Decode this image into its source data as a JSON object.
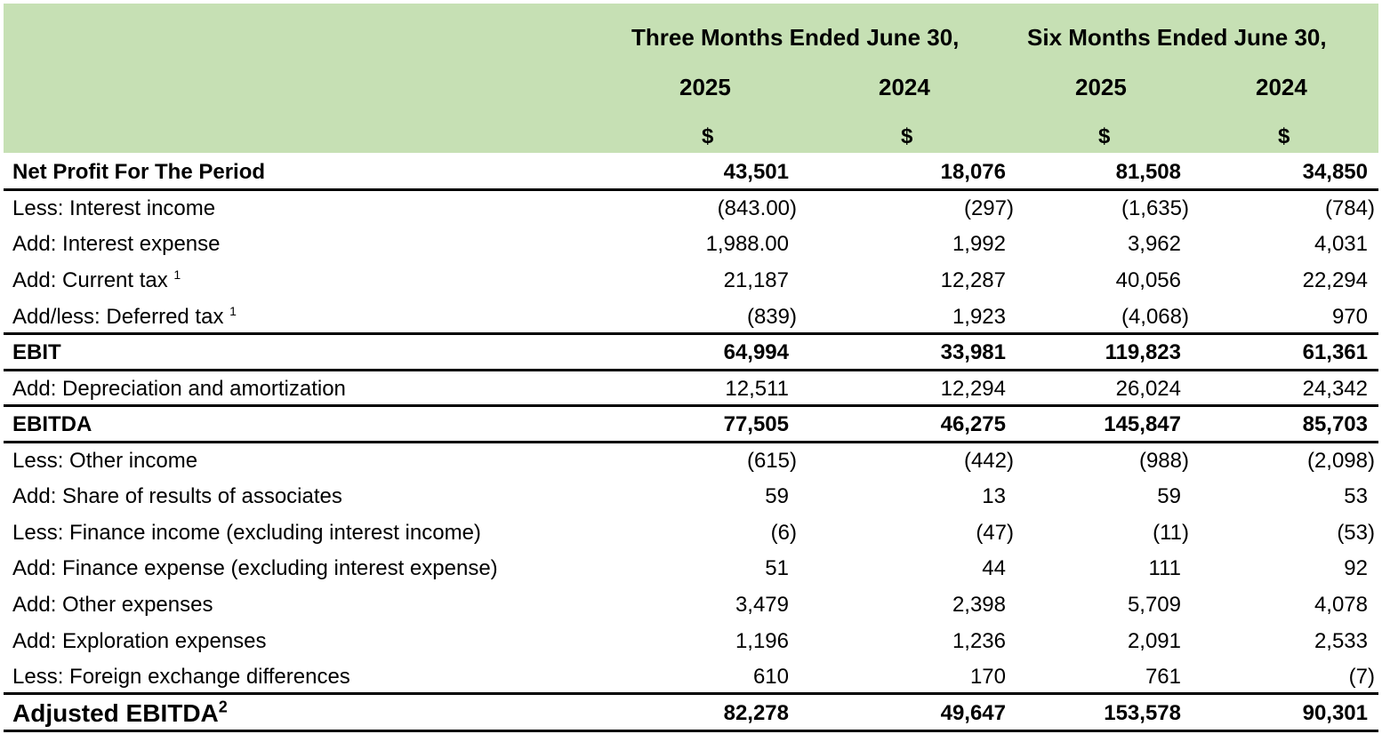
{
  "header": {
    "group_three_months": "Three Months Ended June 30,",
    "group_six_months": "Six Months Ended June 30,",
    "years": [
      "2025",
      "2024",
      "2025",
      "2024"
    ],
    "currency": [
      "$",
      "$",
      "$",
      "$"
    ]
  },
  "rows": [
    {
      "label": "Net Profit For The Period",
      "sup": "",
      "values": [
        "43,501",
        "18,076",
        "81,508",
        "34,850"
      ]
    },
    {
      "label": "Less: Interest income",
      "sup": "",
      "values": [
        "(843.00)",
        "(297)",
        "(1,635)",
        "(784)"
      ]
    },
    {
      "label": "Add: Interest expense",
      "sup": "",
      "values": [
        "1,988.00",
        "1,992",
        "3,962",
        "4,031"
      ]
    },
    {
      "label": "Add: Current tax",
      "sup": "1",
      "values": [
        "21,187",
        "12,287",
        "40,056",
        "22,294"
      ]
    },
    {
      "label": "Add/less: Deferred tax",
      "sup": "1",
      "values": [
        "(839)",
        "1,923",
        "(4,068)",
        "970"
      ]
    },
    {
      "label": "EBIT",
      "sup": "",
      "values": [
        "64,994",
        "33,981",
        "119,823",
        "61,361"
      ]
    },
    {
      "label": "Add: Depreciation and amortization",
      "sup": "",
      "values": [
        "12,511",
        "12,294",
        "26,024",
        "24,342"
      ]
    },
    {
      "label": "EBITDA",
      "sup": "",
      "values": [
        "77,505",
        "46,275",
        "145,847",
        "85,703"
      ]
    },
    {
      "label": "Less: Other income",
      "sup": "",
      "values": [
        "(615)",
        "(442)",
        "(988)",
        "(2,098)"
      ]
    },
    {
      "label": "Add: Share of results of associates",
      "sup": "",
      "values": [
        "59",
        "13",
        "59",
        "53"
      ]
    },
    {
      "label": "Less: Finance income (excluding interest income)",
      "sup": "",
      "values": [
        "(6)",
        "(47)",
        "(11)",
        "(53)"
      ]
    },
    {
      "label": "Add: Finance expense (excluding interest expense)",
      "sup": "",
      "values": [
        "51",
        "44",
        "111",
        "92"
      ]
    },
    {
      "label": "Add: Other expenses",
      "sup": "",
      "values": [
        "3,479",
        "2,398",
        "5,709",
        "4,078"
      ]
    },
    {
      "label": "Add: Exploration expenses",
      "sup": "",
      "values": [
        "1,196",
        "1,236",
        "2,091",
        "2,533"
      ]
    },
    {
      "label": "Less: Foreign exchange differences",
      "sup": "",
      "values": [
        "610",
        "170",
        "761",
        "(7)"
      ]
    },
    {
      "label": "Adjusted EBITDA",
      "sup": "2",
      "values": [
        "82,278",
        "49,647",
        "153,578",
        "90,301"
      ]
    }
  ]
}
